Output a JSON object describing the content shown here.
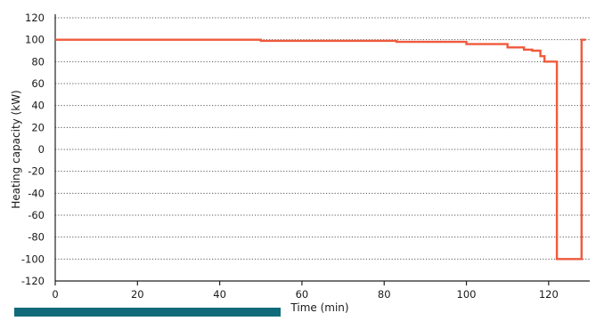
{
  "chart_data": {
    "type": "line",
    "title": "",
    "xlabel": "Time (min)",
    "ylabel": "Heating capacity (kW)",
    "xlim": [
      0,
      130
    ],
    "ylim": [
      -120,
      120
    ],
    "x_ticks": [
      0,
      20,
      40,
      60,
      80,
      100,
      120
    ],
    "y_ticks": [
      120,
      100,
      80,
      60,
      40,
      20,
      0,
      -20,
      -40,
      -60,
      -80,
      -100,
      -120
    ],
    "grid": "horizontal dotted",
    "line_color": "#ef5a3c",
    "footer_bar_color": "#0f6b7a",
    "series": [
      {
        "x": [
          0,
          50,
          50,
          83,
          83,
          100,
          100,
          110,
          110,
          114,
          114,
          116,
          116,
          118,
          118,
          119,
          119,
          121,
          121,
          122,
          122,
          128,
          128,
          129
        ],
        "y": [
          100,
          100,
          99,
          99,
          98,
          98,
          96,
          96,
          93,
          93,
          91,
          91,
          90,
          90,
          85,
          85,
          80,
          80,
          80,
          80,
          -100,
          -100,
          100,
          100
        ]
      }
    ]
  }
}
